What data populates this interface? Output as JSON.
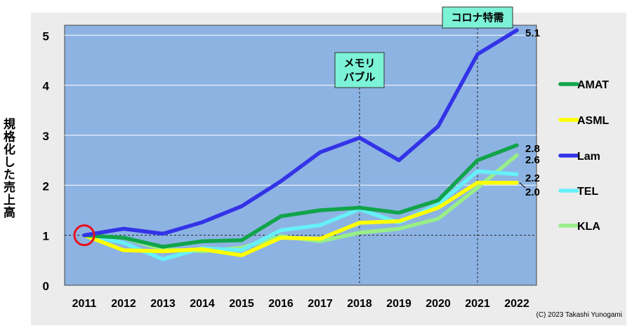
{
  "chart_data": {
    "type": "line",
    "title": "",
    "xlabel": "",
    "ylabel": "規格化した売上高",
    "categories": [
      "2011",
      "2012",
      "2013",
      "2014",
      "2015",
      "2016",
      "2017",
      "2018",
      "2019",
      "2020",
      "2021",
      "2022"
    ],
    "ylim": [
      0,
      5.2
    ],
    "yticks": [
      "0",
      "1",
      "2",
      "3",
      "4",
      "5"
    ],
    "grid": true,
    "legend_position": "right",
    "series": [
      {
        "name": "AMAT",
        "color": "#11a44a",
        "values": [
          1.0,
          0.95,
          0.77,
          0.88,
          0.9,
          1.38,
          1.5,
          1.55,
          1.45,
          1.7,
          2.5,
          2.8
        ],
        "end_label": "2.8"
      },
      {
        "name": "ASML",
        "color": "#ffff00",
        "values": [
          1.0,
          0.7,
          0.68,
          0.72,
          0.6,
          0.95,
          0.93,
          1.25,
          1.28,
          1.55,
          2.05,
          2.05
        ],
        "end_label": "2.0"
      },
      {
        "name": "Lam",
        "color": "#3333e8",
        "values": [
          1.0,
          1.13,
          1.03,
          1.26,
          1.58,
          2.08,
          2.66,
          2.95,
          2.5,
          3.18,
          4.62,
          5.1
        ],
        "end_label": "5.1"
      },
      {
        "name": "TEL",
        "color": "#66f0f8",
        "values": [
          1.0,
          0.85,
          0.52,
          0.74,
          0.7,
          1.1,
          1.2,
          1.52,
          1.25,
          1.62,
          2.28,
          2.22
        ],
        "end_label": "2.2"
      },
      {
        "name": "KLA",
        "color": "#99ee88",
        "values": [
          1.0,
          0.95,
          0.72,
          0.68,
          0.75,
          0.98,
          0.88,
          1.05,
          1.13,
          1.33,
          1.95,
          2.6
        ],
        "end_label": "2.6"
      }
    ],
    "annotations": [
      {
        "text_lines": [
          "メモリ",
          "バブル"
        ],
        "x": "2018"
      },
      {
        "text_lines": [
          "コロナ特需"
        ],
        "x": "2021"
      }
    ],
    "reference_line": 1,
    "base_marker_x": "2011"
  },
  "copyright": "(C) 2023 Takashi Yunogami"
}
